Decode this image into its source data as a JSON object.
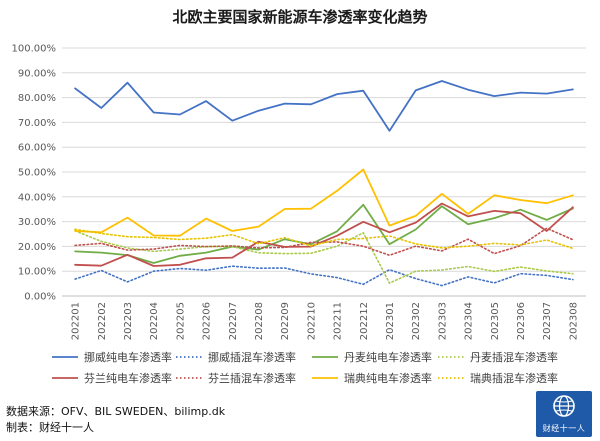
{
  "chart_data": {
    "type": "line",
    "title": "北欧主要国家新能源车渗透率变化趋势",
    "xlabel": "",
    "ylabel": "",
    "ylim": [
      0,
      100
    ],
    "y_tick_labels": [
      "0.00%",
      "10.00%",
      "20.00%",
      "30.00%",
      "40.00%",
      "50.00%",
      "60.00%",
      "70.00%",
      "80.00%",
      "90.00%",
      "100.00%"
    ],
    "grid": true,
    "legend_position": "bottom",
    "categories": [
      "202201",
      "202202",
      "202203",
      "202204",
      "202205",
      "202206",
      "202207",
      "202208",
      "202209",
      "202210",
      "202211",
      "202212",
      "202301",
      "202302",
      "202303",
      "202304",
      "202305",
      "202306",
      "202307",
      "202308"
    ],
    "series": [
      {
        "name": "挪威纯电车渗透率",
        "color": "#4472c4",
        "dash": "solid",
        "values": [
          83.7,
          75.8,
          86.0,
          74.0,
          73.2,
          78.6,
          70.7,
          74.7,
          77.6,
          77.3,
          81.4,
          82.8,
          66.6,
          82.9,
          86.7,
          83.2,
          80.6,
          82.0,
          81.6,
          83.3
        ]
      },
      {
        "name": "挪威插混车渗透率",
        "color": "#4472c4",
        "dash": "dotted",
        "values": [
          6.8,
          10.3,
          5.7,
          10.0,
          11.1,
          10.4,
          12.0,
          11.2,
          11.3,
          8.9,
          7.4,
          4.7,
          10.6,
          7.0,
          4.2,
          7.7,
          5.3,
          9.0,
          8.3,
          6.6
        ]
      },
      {
        "name": "丹麦纯电车渗透率",
        "color": "#70ad47",
        "dash": "solid",
        "values": [
          18.0,
          17.5,
          16.5,
          13.3,
          16.2,
          17.5,
          19.9,
          18.7,
          22.9,
          20.9,
          26.1,
          36.8,
          20.9,
          26.8,
          36.2,
          28.9,
          31.4,
          34.8,
          30.7,
          35.3
        ]
      },
      {
        "name": "丹麦插混车渗透率",
        "color": "#a9c94a",
        "dash": "dotted",
        "values": [
          26.3,
          22.0,
          19.4,
          18.0,
          18.9,
          19.9,
          19.9,
          17.4,
          17.1,
          17.2,
          20.1,
          25.5,
          5.2,
          10.0,
          10.5,
          11.9,
          9.9,
          11.7,
          10.1,
          9.0
        ]
      },
      {
        "name": "芬兰纯电车渗透率",
        "color": "#c0504d",
        "dash": "solid",
        "values": [
          12.6,
          12.2,
          16.6,
          12.1,
          12.6,
          15.2,
          15.5,
          21.9,
          19.8,
          19.9,
          24.3,
          29.9,
          25.7,
          29.6,
          37.3,
          32.1,
          34.3,
          33.4,
          26.2,
          35.8
        ]
      },
      {
        "name": "芬兰插混车渗透率",
        "color": "#c0504d",
        "dash": "dotted",
        "values": [
          20.4,
          21.2,
          18.5,
          18.9,
          20.4,
          19.9,
          20.2,
          19.4,
          19.6,
          21.6,
          21.8,
          20.1,
          16.4,
          20.1,
          18.2,
          22.9,
          17.1,
          20.3,
          27.3,
          22.7
        ]
      },
      {
        "name": "瑞典纯电车渗透率",
        "color": "#ffc000",
        "dash": "solid",
        "values": [
          26.2,
          25.7,
          31.6,
          24.4,
          24.3,
          31.2,
          26.2,
          28.0,
          35.1,
          35.2,
          42.4,
          51.0,
          28.4,
          32.3,
          41.2,
          33.1,
          40.6,
          38.7,
          37.4,
          40.6
        ]
      },
      {
        "name": "瑞典插混车渗透率",
        "color": "#e6c200",
        "dash": "dotted",
        "values": [
          26.9,
          25.2,
          23.9,
          23.6,
          22.8,
          23.3,
          24.7,
          21.1,
          23.5,
          20.2,
          22.8,
          23.2,
          24.2,
          21.0,
          19.4,
          20.1,
          21.2,
          20.6,
          22.6,
          19.2
        ]
      }
    ]
  },
  "footer": {
    "source": "数据来源：OFV、BIL SWEDEN、bilimp.dk",
    "maker": "制表：财经十一人"
  },
  "logo": {
    "text": "财经十一人",
    "color": "#1f5aa8"
  }
}
